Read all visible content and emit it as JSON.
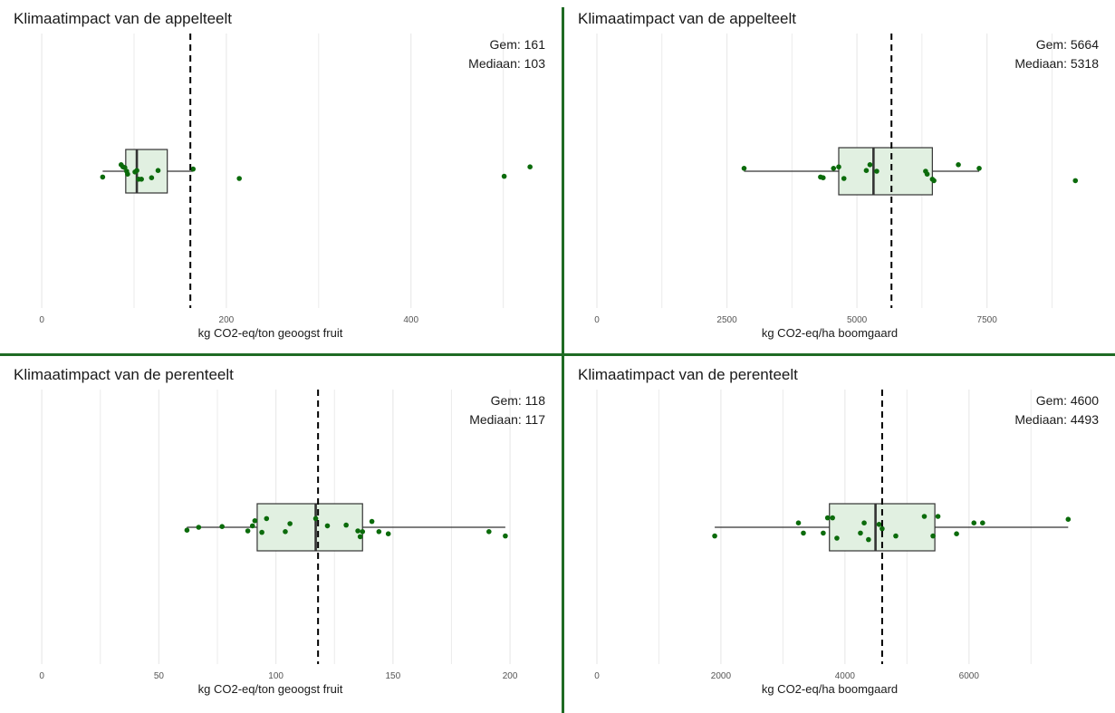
{
  "colors": {
    "divider": "#1f6b24",
    "point": "#0b6b0b",
    "box_fill": "#e1f0e1",
    "box_stroke": "#333333",
    "grid": "#ebebeb",
    "mean_line": "#000000"
  },
  "chart_data": [
    {
      "type": "boxplot",
      "title": "Klimaatimpact van de appelteelt",
      "xlabel": "kg CO2-eq/ton geoogst fruit",
      "xlim": [
        -5,
        520
      ],
      "ticks": [
        0,
        200,
        400
      ],
      "tick_labels": [
        "0",
        "200",
        "400"
      ],
      "grid_minor": [
        100,
        300,
        500
      ],
      "mean": 161,
      "median": 103,
      "q1": 91,
      "q3": 136,
      "whisker_low": 66,
      "whisker_high": 164,
      "mean_label": "Gem: 161",
      "median_label": "Mediaan: 103",
      "points": [
        {
          "x": 66,
          "y": -0.08
        },
        {
          "x": 86,
          "y": 0.09
        },
        {
          "x": 88,
          "y": 0.06
        },
        {
          "x": 90,
          "y": 0.05
        },
        {
          "x": 92,
          "y": 0.0
        },
        {
          "x": 93,
          "y": -0.04
        },
        {
          "x": 101,
          "y": -0.01
        },
        {
          "x": 103,
          "y": 0.01
        },
        {
          "x": 105,
          "y": -0.11
        },
        {
          "x": 108,
          "y": -0.11
        },
        {
          "x": 119,
          "y": -0.09
        },
        {
          "x": 126,
          "y": 0.01
        },
        {
          "x": 164,
          "y": 0.03
        },
        {
          "x": 214,
          "y": -0.1
        },
        {
          "x": 501,
          "y": -0.07
        },
        {
          "x": 529,
          "y": 0.06
        }
      ]
    },
    {
      "type": "boxplot",
      "title": "Klimaatimpact van de appelteelt",
      "xlabel": "kg CO2-eq/ha boomgaard",
      "xlim": [
        0,
        9300
      ],
      "ticks": [
        0,
        2500,
        5000,
        7500
      ],
      "tick_labels": [
        "0",
        "2500",
        "5000",
        "7500"
      ],
      "grid_minor": [
        1250,
        3750,
        6250,
        8750
      ],
      "mean": 5664,
      "median": 5318,
      "q1": 4650,
      "q3": 6450,
      "whisker_low": 2830,
      "whisker_high": 7350,
      "mean_label": "Gem: 5664",
      "median_label": "Mediaan: 5318",
      "points": [
        {
          "x": 2830,
          "y": 0.04
        },
        {
          "x": 4300,
          "y": -0.08
        },
        {
          "x": 4350,
          "y": -0.09
        },
        {
          "x": 4550,
          "y": 0.04
        },
        {
          "x": 4650,
          "y": 0.06
        },
        {
          "x": 4750,
          "y": -0.1
        },
        {
          "x": 5180,
          "y": 0.01
        },
        {
          "x": 5250,
          "y": 0.09
        },
        {
          "x": 5380,
          "y": 0.0
        },
        {
          "x": 6320,
          "y": 0.0
        },
        {
          "x": 6350,
          "y": -0.04
        },
        {
          "x": 6450,
          "y": -0.11
        },
        {
          "x": 6480,
          "y": -0.13
        },
        {
          "x": 6950,
          "y": 0.09
        },
        {
          "x": 7350,
          "y": 0.04
        },
        {
          "x": 9200,
          "y": -0.13
        }
      ]
    },
    {
      "type": "boxplot",
      "title": "Klimaatimpact van de perenteelt",
      "xlabel": "kg CO2-eq/ton geoogst fruit",
      "xlim": [
        -2,
        205
      ],
      "ticks": [
        0,
        50,
        100,
        150,
        200
      ],
      "tick_labels": [
        "0",
        "50",
        "100",
        "150",
        "200"
      ],
      "grid_minor": [
        25,
        75,
        125,
        175
      ],
      "mean": 118,
      "median": 117,
      "q1": 92,
      "q3": 137,
      "whisker_low": 62,
      "whisker_high": 198,
      "mean_label": "Gem: 118",
      "median_label": "Mediaan: 117",
      "points": [
        {
          "x": 62,
          "y": -0.04
        },
        {
          "x": 67,
          "y": 0.0
        },
        {
          "x": 77,
          "y": 0.01
        },
        {
          "x": 88,
          "y": -0.05
        },
        {
          "x": 90,
          "y": 0.02
        },
        {
          "x": 91,
          "y": 0.09
        },
        {
          "x": 94,
          "y": -0.07
        },
        {
          "x": 96,
          "y": 0.12
        },
        {
          "x": 104,
          "y": -0.06
        },
        {
          "x": 106,
          "y": 0.05
        },
        {
          "x": 117,
          "y": 0.12
        },
        {
          "x": 122,
          "y": 0.02
        },
        {
          "x": 130,
          "y": 0.03
        },
        {
          "x": 135,
          "y": -0.05
        },
        {
          "x": 136,
          "y": -0.13
        },
        {
          "x": 137,
          "y": -0.06
        },
        {
          "x": 141,
          "y": 0.08
        },
        {
          "x": 144,
          "y": -0.06
        },
        {
          "x": 148,
          "y": -0.09
        },
        {
          "x": 191,
          "y": -0.06
        },
        {
          "x": 198,
          "y": -0.12
        }
      ]
    },
    {
      "type": "boxplot",
      "title": "Klimaatimpact van de perenteelt",
      "xlabel": "kg CO2-eq/ha boomgaard",
      "xlim": [
        0,
        7800
      ],
      "ticks": [
        0,
        2000,
        4000,
        6000
      ],
      "tick_labels": [
        "0",
        "2000",
        "4000",
        "6000"
      ],
      "grid_minor": [
        1000,
        3000,
        5000,
        7000
      ],
      "mean": 4600,
      "median": 4493,
      "q1": 3750,
      "q3": 5450,
      "whisker_low": 1900,
      "whisker_high": 7600,
      "mean_label": "Gem: 4600",
      "median_label": "Mediaan: 4493",
      "points": [
        {
          "x": 1900,
          "y": -0.12
        },
        {
          "x": 3250,
          "y": 0.06
        },
        {
          "x": 3330,
          "y": -0.08
        },
        {
          "x": 3650,
          "y": -0.08
        },
        {
          "x": 3720,
          "y": 0.13
        },
        {
          "x": 3800,
          "y": 0.13
        },
        {
          "x": 3870,
          "y": -0.15
        },
        {
          "x": 4250,
          "y": -0.08
        },
        {
          "x": 4310,
          "y": 0.06
        },
        {
          "x": 4380,
          "y": -0.17
        },
        {
          "x": 4550,
          "y": 0.04
        },
        {
          "x": 4600,
          "y": -0.02
        },
        {
          "x": 4820,
          "y": -0.12
        },
        {
          "x": 5280,
          "y": 0.15
        },
        {
          "x": 5420,
          "y": -0.12
        },
        {
          "x": 5500,
          "y": 0.15
        },
        {
          "x": 5800,
          "y": -0.09
        },
        {
          "x": 6080,
          "y": 0.06
        },
        {
          "x": 6220,
          "y": 0.06
        },
        {
          "x": 7600,
          "y": 0.11
        }
      ]
    }
  ]
}
